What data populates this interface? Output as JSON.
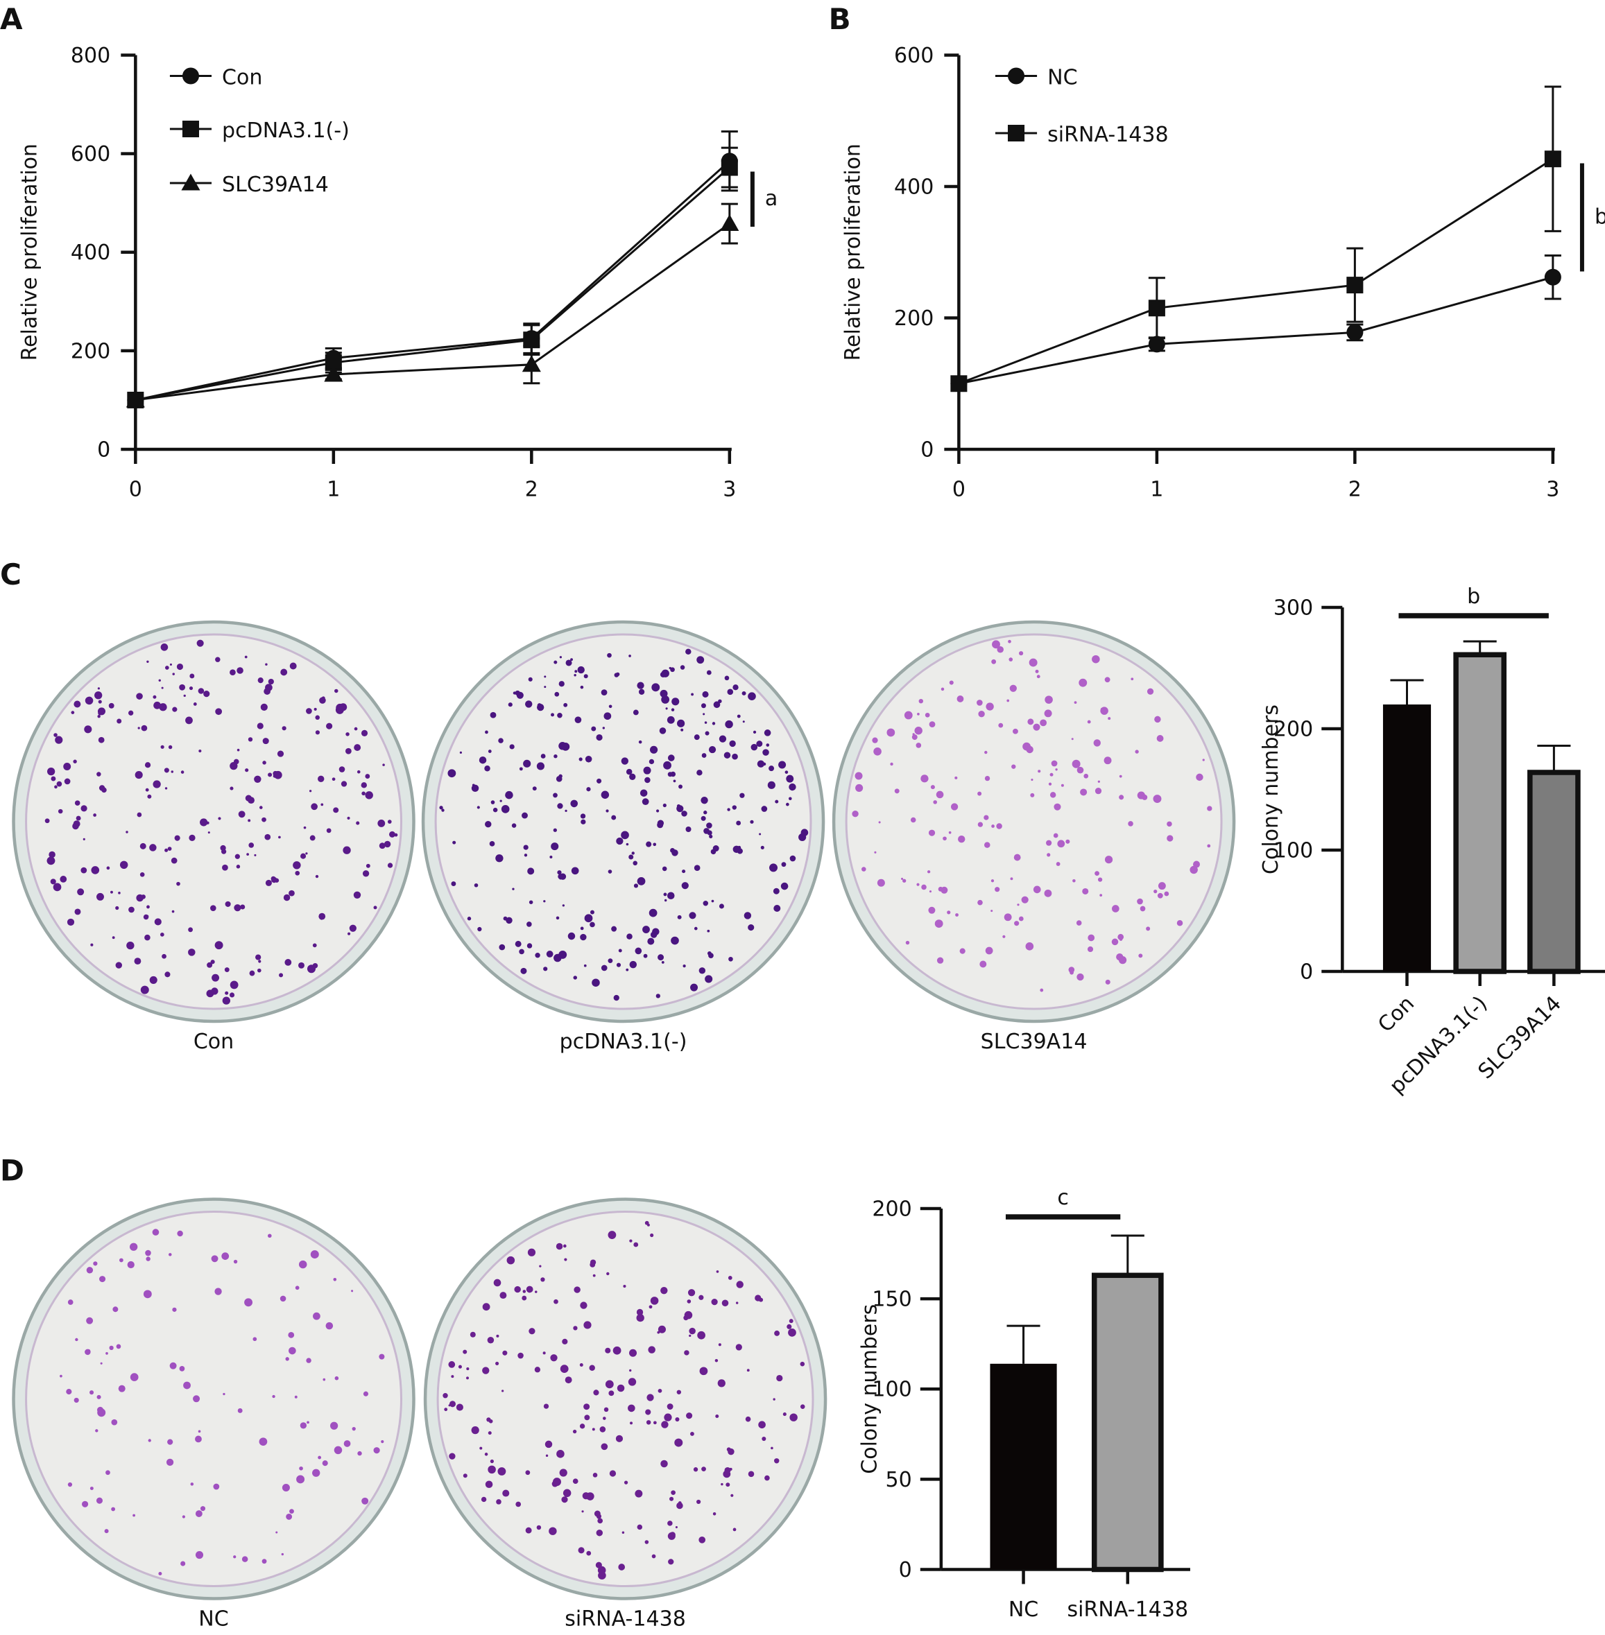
{
  "panels": {
    "A": "A",
    "B": "B",
    "C": "C",
    "D": "D"
  },
  "chart_data": [
    {
      "type": "line",
      "panel": "A",
      "xlabel": "",
      "ylabel": "Relative proliferation",
      "ylim": [
        0,
        800
      ],
      "yticks": [
        0,
        200,
        400,
        600,
        800
      ],
      "x": [
        0,
        1,
        2,
        3
      ],
      "series": [
        {
          "name": "Con",
          "marker": "circle",
          "values": [
            100,
            185,
            225,
            585
          ],
          "errors": [
            0,
            20,
            30,
            60
          ]
        },
        {
          "name": "pcDNA3.1(-)",
          "marker": "square",
          "values": [
            100,
            176,
            222,
            572
          ],
          "errors": [
            0,
            20,
            30,
            40
          ]
        },
        {
          "name": "SLC39A14",
          "marker": "triangle",
          "values": [
            100,
            152,
            172,
            458
          ],
          "errors": [
            0,
            10,
            38,
            40
          ]
        }
      ],
      "significance": "a",
      "legend": "top-left"
    },
    {
      "type": "line",
      "panel": "B",
      "xlabel": "",
      "ylabel": "Relative proliferation",
      "ylim": [
        0,
        600
      ],
      "yticks": [
        0,
        200,
        400,
        600
      ],
      "x": [
        0,
        1,
        2,
        3
      ],
      "series": [
        {
          "name": "NC",
          "marker": "circle",
          "values": [
            100,
            160,
            178,
            262
          ],
          "errors": [
            0,
            10,
            12,
            33
          ]
        },
        {
          "name": "siRNA-1438",
          "marker": "square",
          "values": [
            100,
            215,
            250,
            442
          ],
          "errors": [
            0,
            46,
            56,
            110
          ]
        }
      ],
      "significance": "b",
      "legend": "top-left"
    },
    {
      "type": "bar",
      "panel": "C",
      "ylabel": "Colony numbers",
      "ylim": [
        0,
        300
      ],
      "yticks": [
        0,
        100,
        200,
        300
      ],
      "categories": [
        "Con",
        "pcDNA3.1(-)",
        "SLC39A14"
      ],
      "values": [
        220,
        261,
        164
      ],
      "errors": [
        20,
        11,
        22
      ],
      "colors": [
        "#0a0606",
        "#a0a0a0",
        "#7c7c7c"
      ],
      "significance": "b"
    },
    {
      "type": "bar",
      "panel": "D",
      "ylabel": "Colony numbers",
      "ylim": [
        0,
        200
      ],
      "yticks": [
        0,
        50,
        100,
        150,
        200
      ],
      "categories": [
        "NC",
        "siRNA-1438"
      ],
      "values": [
        114,
        163
      ],
      "errors": [
        21,
        22
      ],
      "colors": [
        "#0a0606",
        "#a0a0a0"
      ],
      "significance": "c"
    }
  ],
  "dishes": {
    "C": [
      {
        "label": "Con",
        "density": 260,
        "color": "#5a1a8a"
      },
      {
        "label": "pcDNA3.1(-)",
        "density": 300,
        "color": "#4a1580"
      },
      {
        "label": "SLC39A14",
        "density": 180,
        "color": "#b060c8"
      }
    ],
    "D": [
      {
        "label": "NC",
        "density": 110,
        "color": "#a050c0"
      },
      {
        "label": "siRNA-1438",
        "density": 220,
        "color": "#6a2090"
      }
    ]
  }
}
